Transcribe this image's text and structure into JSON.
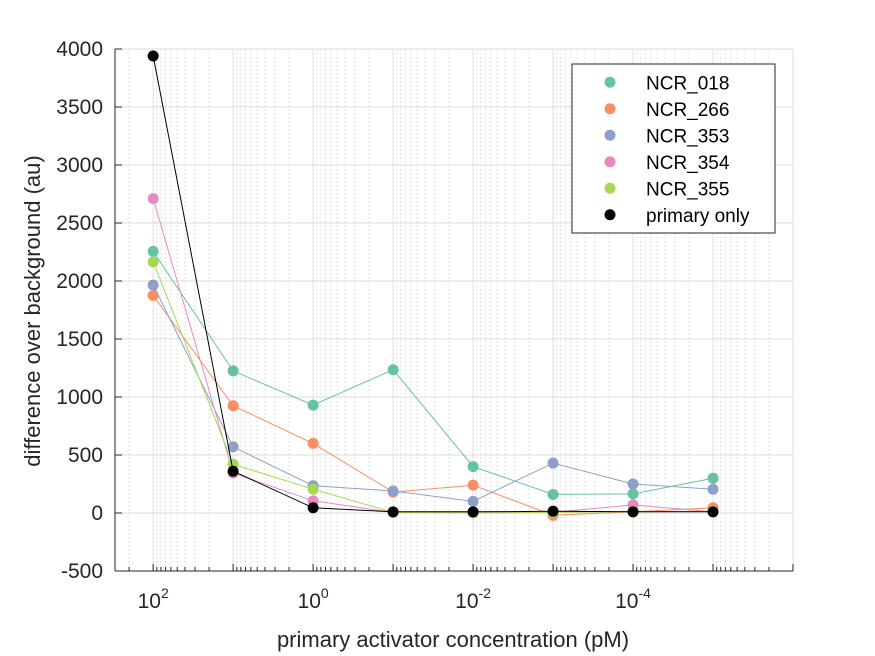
{
  "chart_data": {
    "type": "line",
    "xlabel": "primary activator concentration (pM)",
    "ylabel": "difference over background (au)",
    "x_scale": "log",
    "x_reversed": true,
    "xlim": [
      300,
      1e-06
    ],
    "ylim": [
      -500,
      4000
    ],
    "grid": true,
    "minor_grid": true,
    "legend_position": "top-right",
    "y_ticks": [
      "-500",
      "0",
      "500",
      "1000",
      "1500",
      "2000",
      "2500",
      "3000",
      "3500",
      "4000"
    ],
    "y_tick_values": [
      -500,
      0,
      500,
      1000,
      1500,
      2000,
      2500,
      3000,
      3500,
      4000
    ],
    "x_ticks": [
      {
        "value": 100,
        "base": "10",
        "exp": "2"
      },
      {
        "value": 1,
        "base": "10",
        "exp": "0"
      },
      {
        "value": 0.01,
        "base": "10",
        "exp": "-2"
      },
      {
        "value": 0.0001,
        "base": "10",
        "exp": "-4"
      }
    ],
    "x": [
      100,
      10,
      1,
      0.1,
      0.01,
      0.001,
      0.0001,
      1e-05
    ],
    "series": [
      {
        "name": "NCR_018",
        "color": "#66c2a5",
        "values": [
          2255,
          1225,
          930,
          1235,
          400,
          160,
          165,
          300
        ]
      },
      {
        "name": "NCR_266",
        "color": "#fc8d62",
        "values": [
          1875,
          925,
          600,
          180,
          240,
          -20,
          10,
          45
        ]
      },
      {
        "name": "NCR_353",
        "color": "#8da0cb",
        "values": [
          1965,
          570,
          235,
          190,
          100,
          430,
          250,
          205
        ]
      },
      {
        "name": "NCR_354",
        "color": "#e78ac3",
        "values": [
          2710,
          345,
          105,
          5,
          5,
          5,
          70,
          10
        ]
      },
      {
        "name": "NCR_355",
        "color": "#a6d854",
        "values": [
          2165,
          420,
          205,
          5,
          0,
          5,
          10,
          15
        ]
      },
      {
        "name": "primary only",
        "color": "#000000",
        "values": [
          3940,
          360,
          45,
          10,
          10,
          15,
          10,
          10
        ]
      }
    ]
  }
}
